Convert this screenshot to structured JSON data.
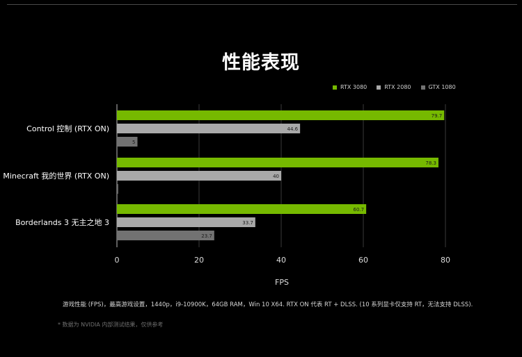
{
  "chart_data": {
    "type": "bar",
    "orientation": "horizontal",
    "title": "性能表现",
    "categories": [
      "Control 控制 (RTX ON)",
      "Minecraft 我的世界 (RTX ON)",
      "Borderlands 3 无主之地 3"
    ],
    "series": [
      {
        "name": "RTX 3080",
        "color": "#76b900",
        "values": [
          79.7,
          78.3,
          60.7
        ],
        "labels": [
          "79.7",
          "78.3",
          "60.7"
        ]
      },
      {
        "name": "RTX 2080",
        "color": "#a9a9a9",
        "values": [
          44.6,
          40,
          33.7
        ],
        "labels": [
          "44.6",
          "40",
          "33.7"
        ]
      },
      {
        "name": "GTX 1080",
        "color": "#727272",
        "values": [
          5,
          0.3,
          23.7
        ],
        "labels": [
          "5",
          "",
          "23.7"
        ]
      }
    ],
    "xlabel": "FPS",
    "xlim": [
      0,
      80
    ],
    "xticks": [
      "0",
      "20",
      "40",
      "60",
      "80"
    ],
    "grid": true,
    "legend_position": "top-right"
  },
  "footnote": "游戏性能 (FPS)，最高游戏设置，1440p，i9-10900K，64GB RAM，Win 10 X64. RTX ON 代表 RT + DLSS. (10 系列显卡仅支持 RT，无法支持 DLSS).",
  "disclaimer": "* 数据为 NVIDIA 内部测试结果，仅供参考"
}
